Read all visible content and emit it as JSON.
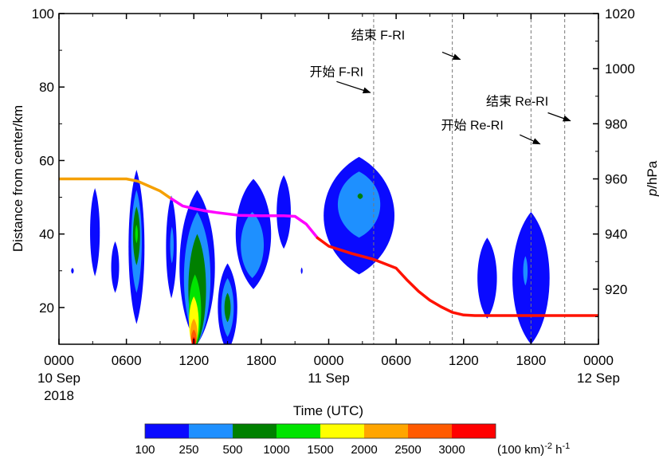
{
  "chart_data": {
    "type": "contour",
    "title": "",
    "xlabel": "Time (UTC)",
    "ylabel_left": "Distance from center/km",
    "ylabel_right_italic": "p",
    "ylabel_right_unit": "/hPa",
    "xlim": [
      0,
      48
    ],
    "ylim_left": [
      10,
      100
    ],
    "ylim_right": [
      900,
      1020
    ],
    "x_ticks": [
      {
        "x": 0,
        "line1": "0000",
        "line2": "10 Sep",
        "line3": "2018"
      },
      {
        "x": 6,
        "line1": "0600",
        "line2": "",
        "line3": ""
      },
      {
        "x": 12,
        "line1": "1200",
        "line2": "",
        "line3": ""
      },
      {
        "x": 18,
        "line1": "1800",
        "line2": "",
        "line3": ""
      },
      {
        "x": 24,
        "line1": "0000",
        "line2": "11 Sep",
        "line3": ""
      },
      {
        "x": 30,
        "line1": "0600",
        "line2": "",
        "line3": ""
      },
      {
        "x": 36,
        "line1": "1200",
        "line2": "",
        "line3": ""
      },
      {
        "x": 42,
        "line1": "1800",
        "line2": "",
        "line3": ""
      },
      {
        "x": 48,
        "line1": "0000",
        "line2": "12 Sep",
        "line3": ""
      }
    ],
    "y_ticks_left": [
      "20",
      "40",
      "60",
      "80",
      "100"
    ],
    "y_ticks_left_values": [
      20,
      40,
      60,
      80,
      100
    ],
    "y_ticks_right": [
      "920",
      "940",
      "960",
      "980",
      "1000",
      "1020"
    ],
    "y_ticks_right_values": [
      920,
      940,
      960,
      980,
      1000,
      1020
    ],
    "pressure_series": {
      "x": [
        0,
        6,
        7,
        8,
        9,
        10,
        11,
        12,
        13,
        14,
        16,
        18,
        20,
        21,
        22,
        23,
        24,
        26,
        28,
        30,
        31,
        32,
        33,
        34,
        35,
        36,
        37,
        38,
        40,
        42,
        44,
        46,
        48
      ],
      "p": [
        960,
        960,
        959.2,
        957.4,
        955.6,
        952.8,
        950.2,
        949.2,
        948.4,
        947.8,
        946.8,
        946.6,
        946.6,
        946.4,
        943.6,
        938.6,
        935.6,
        933.0,
        930.8,
        927.6,
        923.2,
        919.2,
        916.0,
        913.6,
        911.6,
        910.6,
        910.4,
        910.4,
        910.4,
        910.4,
        910.4,
        910.4,
        910.4
      ],
      "segments": [
        {
          "from_x": 0,
          "to_x": 10,
          "color": "#f5a000"
        },
        {
          "from_x": 10,
          "to_x": 23,
          "color": "#ff00ff"
        },
        {
          "from_x": 23,
          "to_x": 48,
          "color": "#ff1200"
        }
      ]
    },
    "vertical_lines_x": [
      28,
      35,
      42,
      45
    ],
    "annotations": [
      {
        "text": "开始 F-RI",
        "x": 22.3,
        "y": 83,
        "arrow_from": [
          24.7,
          81.5
        ],
        "arrow_to": [
          27.7,
          78.5
        ]
      },
      {
        "text": "结束 F-RI",
        "x": 26.0,
        "y": 93,
        "arrow_from": [
          34.1,
          89.5
        ],
        "arrow_to": [
          35.7,
          87.5
        ]
      },
      {
        "text": "结束 Re-RI",
        "x": 38.0,
        "y": 75,
        "arrow_from": [
          43.5,
          73.0
        ],
        "arrow_to": [
          45.5,
          70.8
        ]
      },
      {
        "text": "开始 Re-RI",
        "x": 34.0,
        "y": 68.5,
        "arrow_from": [
          41.0,
          67.0
        ],
        "arrow_to": [
          42.8,
          64.5
        ]
      }
    ],
    "contour_levels": [
      "100",
      "250",
      "500",
      "1000",
      "1500",
      "2000",
      "2500",
      "3000"
    ],
    "contour_colors": [
      "#0a0aff",
      "#1e90ff",
      "#008000",
      "#00e400",
      "#ffff00",
      "#ffa500",
      "#ff5a00",
      "#ff0000"
    ],
    "colorbar_unit": "(100 km)",
    "colorbar_unit_exp": "-2",
    "colorbar_unit_tail": " h",
    "colorbar_unit_tail_exp": "-1",
    "contour_blobs": [
      {
        "level": 0,
        "cx": 3.2,
        "cy": 40.5,
        "rx": 0.55,
        "ry": 12
      },
      {
        "level": 0,
        "cx": 5.0,
        "cy": 31,
        "rx": 0.45,
        "ry": 7
      },
      {
        "level": 0,
        "cx": 1.2,
        "cy": 30,
        "rx": 0.15,
        "ry": 0.8
      },
      {
        "level": 0,
        "cx": 6.9,
        "cy": 36.5,
        "rx": 0.9,
        "ry": 21
      },
      {
        "level": 1,
        "cx": 6.9,
        "cy": 38,
        "rx": 0.6,
        "ry": 14
      },
      {
        "level": 2,
        "cx": 6.9,
        "cy": 39.5,
        "rx": 0.4,
        "ry": 8
      },
      {
        "level": 3,
        "cx": 6.9,
        "cy": 40,
        "rx": 0.15,
        "ry": 2.5
      },
      {
        "level": 0,
        "cx": 10.0,
        "cy": 36.5,
        "rx": 0.6,
        "ry": 14
      },
      {
        "level": 1,
        "cx": 10.05,
        "cy": 37,
        "rx": 0.2,
        "ry": 5
      },
      {
        "level": 0,
        "cx": 12.3,
        "cy": 31,
        "rx": 2.0,
        "ry": 21
      },
      {
        "level": 1,
        "cx": 12.3,
        "cy": 28,
        "rx": 1.5,
        "ry": 18
      },
      {
        "level": 2,
        "cx": 12.3,
        "cy": 25,
        "rx": 1.0,
        "ry": 15
      },
      {
        "level": 3,
        "cx": 12.1,
        "cy": 19,
        "rx": 0.7,
        "ry": 10
      },
      {
        "level": 4,
        "cx": 12.0,
        "cy": 16,
        "rx": 0.55,
        "ry": 7
      },
      {
        "level": 5,
        "cx": 12.0,
        "cy": 13,
        "rx": 0.4,
        "ry": 4
      },
      {
        "level": 6,
        "cx": 12.0,
        "cy": 11.5,
        "rx": 0.3,
        "ry": 2.5
      },
      {
        "level": 7,
        "cx": 12.0,
        "cy": 10.5,
        "rx": 0.2,
        "ry": 1.5
      },
      {
        "level": 0,
        "cx": 15.0,
        "cy": 20,
        "rx": 1.1,
        "ry": 12
      },
      {
        "level": 1,
        "cx": 15.0,
        "cy": 20,
        "rx": 0.7,
        "ry": 8
      },
      {
        "level": 2,
        "cx": 15.0,
        "cy": 20,
        "rx": 0.35,
        "ry": 4
      },
      {
        "level": 0,
        "cx": 17.3,
        "cy": 40,
        "rx": 2.0,
        "ry": 15
      },
      {
        "level": 1,
        "cx": 17.2,
        "cy": 37,
        "rx": 1.3,
        "ry": 9
      },
      {
        "level": 0,
        "cx": 20.0,
        "cy": 46,
        "rx": 0.8,
        "ry": 10
      },
      {
        "level": 0,
        "cx": 21.6,
        "cy": 30,
        "rx": 0.1,
        "ry": 0.9
      },
      {
        "level": 0,
        "cx": 26.7,
        "cy": 45,
        "rx": 4.0,
        "ry": 16
      },
      {
        "level": 1,
        "cx": 26.7,
        "cy": 48,
        "rx": 2.4,
        "ry": 9
      },
      {
        "level": 2,
        "cx": 26.8,
        "cy": 50.3,
        "rx": 0.3,
        "ry": 0.8
      },
      {
        "level": 0,
        "cx": 38.1,
        "cy": 28,
        "rx": 1.1,
        "ry": 11
      },
      {
        "level": 0,
        "cx": 42.0,
        "cy": 28,
        "rx": 2.1,
        "ry": 18
      },
      {
        "level": 1,
        "cx": 41.5,
        "cy": 30,
        "rx": 0.25,
        "ry": 4
      }
    ]
  }
}
